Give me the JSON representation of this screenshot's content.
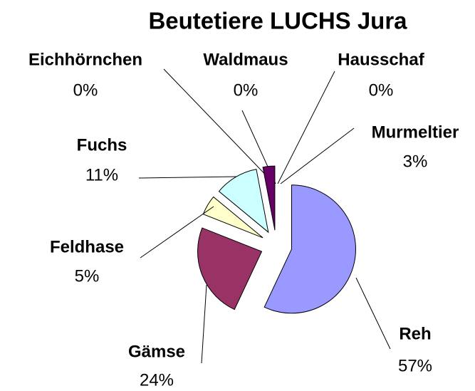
{
  "chart_data": {
    "type": "pie",
    "title": "Beutetiere LUCHS Jura",
    "categories": [
      "Reh",
      "Gämse",
      "Feldhase",
      "Fuchs",
      "Eichhörnchen",
      "Waldmaus",
      "Hausschaf",
      "Murmeltier"
    ],
    "values": [
      57,
      24,
      5,
      11,
      0,
      0,
      0,
      3
    ],
    "value_labels": [
      "57%",
      "24%",
      "5%",
      "11%",
      "0%",
      "0%",
      "0%",
      "3%"
    ],
    "colors": [
      "#9999ff",
      "#993366",
      "#ffffcc",
      "#ccffff",
      "#ff8080",
      "#0066cc",
      "#ccccff",
      "#660066"
    ]
  }
}
